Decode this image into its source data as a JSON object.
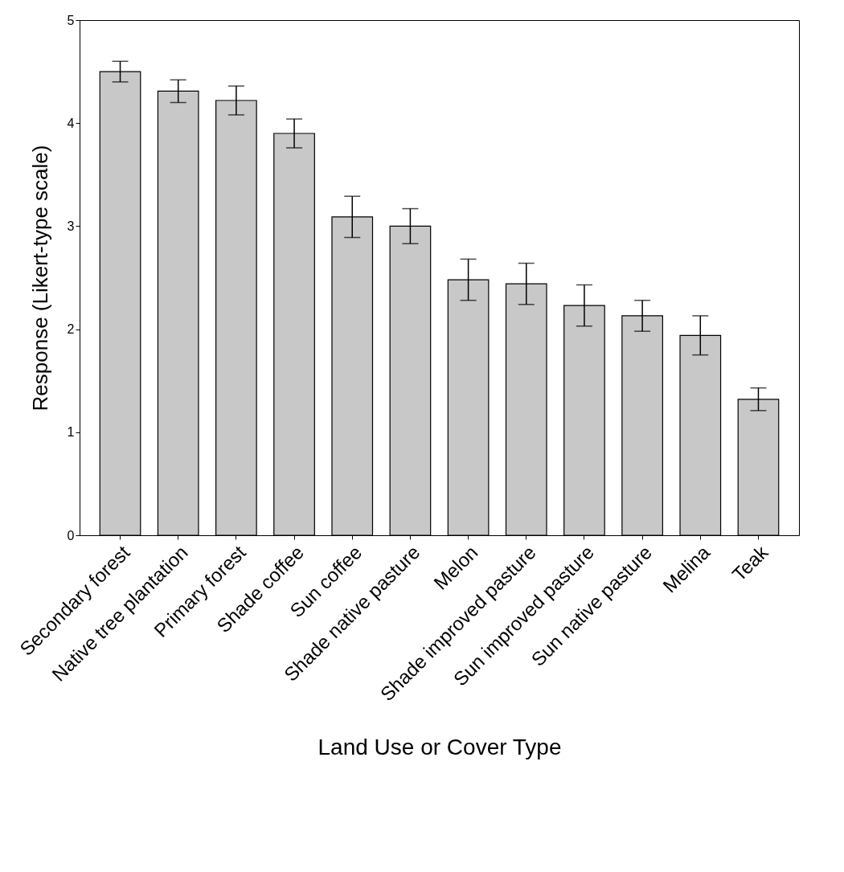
{
  "chart_data": {
    "type": "bar",
    "xlabel": "Land Use or Cover Type",
    "ylabel": "Response (Likert-type scale)",
    "categories": [
      "Secondary forest",
      "Native tree plantation",
      "Primary forest",
      "Shade coffee",
      "Sun coffee",
      "Shade native pasture",
      "Melon",
      "Shade improved pasture",
      "Sun improved pasture",
      "Sun native pasture",
      "Melina",
      "Teak"
    ],
    "values": [
      4.5,
      4.31,
      4.22,
      3.9,
      3.09,
      3.0,
      2.48,
      2.44,
      2.23,
      2.13,
      1.94,
      1.32
    ],
    "errors": [
      0.1,
      0.11,
      0.14,
      0.14,
      0.2,
      0.17,
      0.2,
      0.2,
      0.2,
      0.15,
      0.19,
      0.11
    ],
    "color": "#c8c8c8",
    "ylim": [
      0,
      5
    ],
    "yticks": [
      0,
      1,
      2,
      3,
      4,
      5
    ],
    "grid": false
  }
}
